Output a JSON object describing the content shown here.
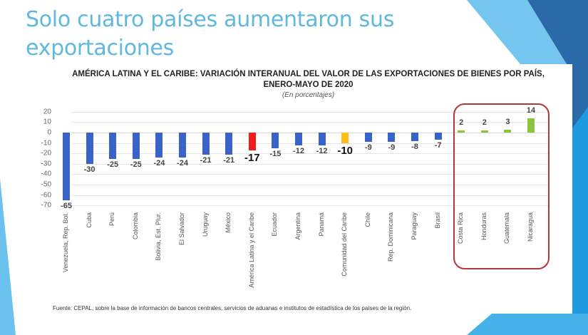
{
  "slide": {
    "title_line1": "Solo cuatro países aumentaron sus",
    "title_line2": "exportaciones",
    "colors": {
      "title": "#5fb8dd",
      "accent_light": "#74c6ee",
      "accent_mid": "#1e9ae0",
      "accent_dark": "#2a6aa8"
    }
  },
  "chart": {
    "title_line1": "AMÉRICA LATINA Y EL CARIBE: VARIACIÓN INTERANUAL DEL VALOR DE LAS EXPORTACIONES DE BIENES POR PAÍS,",
    "title_line2": "ENERO-MAYO DE 2020",
    "subtitle": "(En porcentajes)",
    "source": "Fuente: CEPAL, sobre la base de información de bancos centrales, servicios de aduanas e institutos de estadística de los países de la región.",
    "y_ticks": [
      "20",
      "10",
      "0",
      "-10",
      "-20",
      "-30",
      "-40",
      "-50",
      "-60",
      "-70"
    ]
  },
  "chart_data": {
    "type": "bar",
    "title": "AMÉRICA LATINA Y EL CARIBE: VARIACIÓN INTERANUAL DEL VALOR DE LAS EXPORTACIONES DE BIENES POR PAÍS, ENERO-MAYO DE 2020",
    "subtitle": "(En porcentajes)",
    "xlabel": "",
    "ylabel": "",
    "ylim": [
      -70,
      20
    ],
    "yticks": [
      20,
      10,
      0,
      -10,
      -20,
      -30,
      -40,
      -50,
      -60,
      -70
    ],
    "grid": true,
    "legend": null,
    "categories": [
      "Venezuela, Rep. Bol.",
      "Cuba",
      "Perú",
      "Colombia",
      "Bolivia, Est. Plur.",
      "El Salvador",
      "Uruguay",
      "México",
      "América Latina y el Caribe",
      "Ecuador",
      "Argentina",
      "Panamá",
      "Comunidad del Caribe",
      "Chile",
      "Rep. Dominicana",
      "Paraguay",
      "Brasil",
      "Costa Rica",
      "Honduras",
      "Guatemala",
      "Nicaragua"
    ],
    "values": [
      -65,
      -30,
      -25,
      -25,
      -24,
      -24,
      -21,
      -21,
      -17,
      -15,
      -12,
      -12,
      -10,
      -9,
      -9,
      -8,
      -7,
      2,
      2,
      3,
      14
    ],
    "bar_colors": [
      "#3a63c9",
      "#3a63c9",
      "#3a63c9",
      "#3a63c9",
      "#3a63c9",
      "#3a63c9",
      "#3a63c9",
      "#3a63c9",
      "#f01c1c",
      "#3a63c9",
      "#3a63c9",
      "#3a63c9",
      "#ffbe17",
      "#3a63c9",
      "#3a63c9",
      "#3a63c9",
      "#3a63c9",
      "#8cc43e",
      "#8cc43e",
      "#8cc43e",
      "#8cc43e"
    ],
    "annotations": [
      "Red rounded box highlighting Costa Rica, Honduras, Guatemala, Nicaragua (positive growth)",
      "América Latina y el Caribe (-17) in red, Comunidad del Caribe (-10) in yellow, labels enlarged"
    ]
  }
}
